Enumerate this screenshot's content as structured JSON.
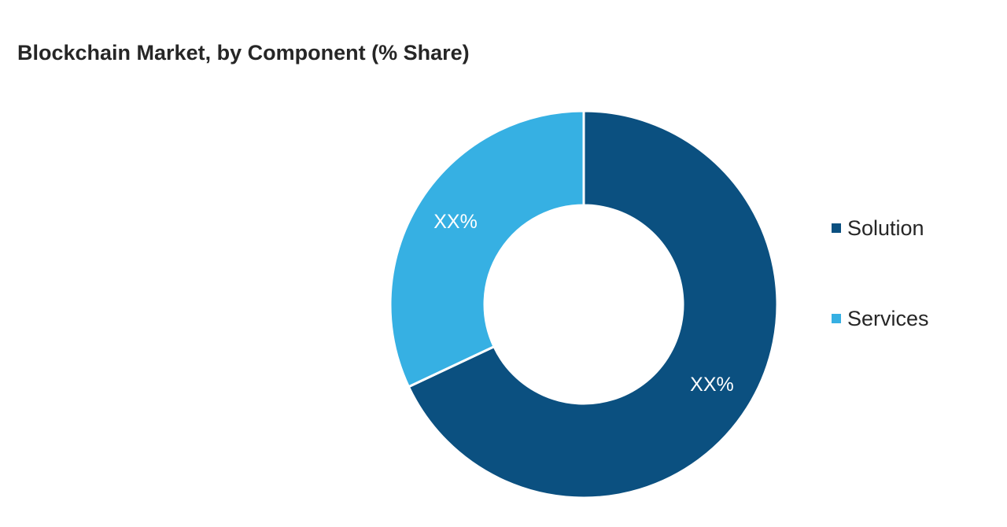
{
  "chart_data": {
    "type": "pie",
    "title": "Blockchain Market, by Component (% Share)",
    "donut": true,
    "legend_position": "right",
    "slices": [
      {
        "name": "Solution",
        "value": 68,
        "label": "XX%",
        "color": "#0b5080"
      },
      {
        "name": "Services",
        "value": 32,
        "label": "XX%",
        "color": "#36b0e3"
      }
    ]
  }
}
